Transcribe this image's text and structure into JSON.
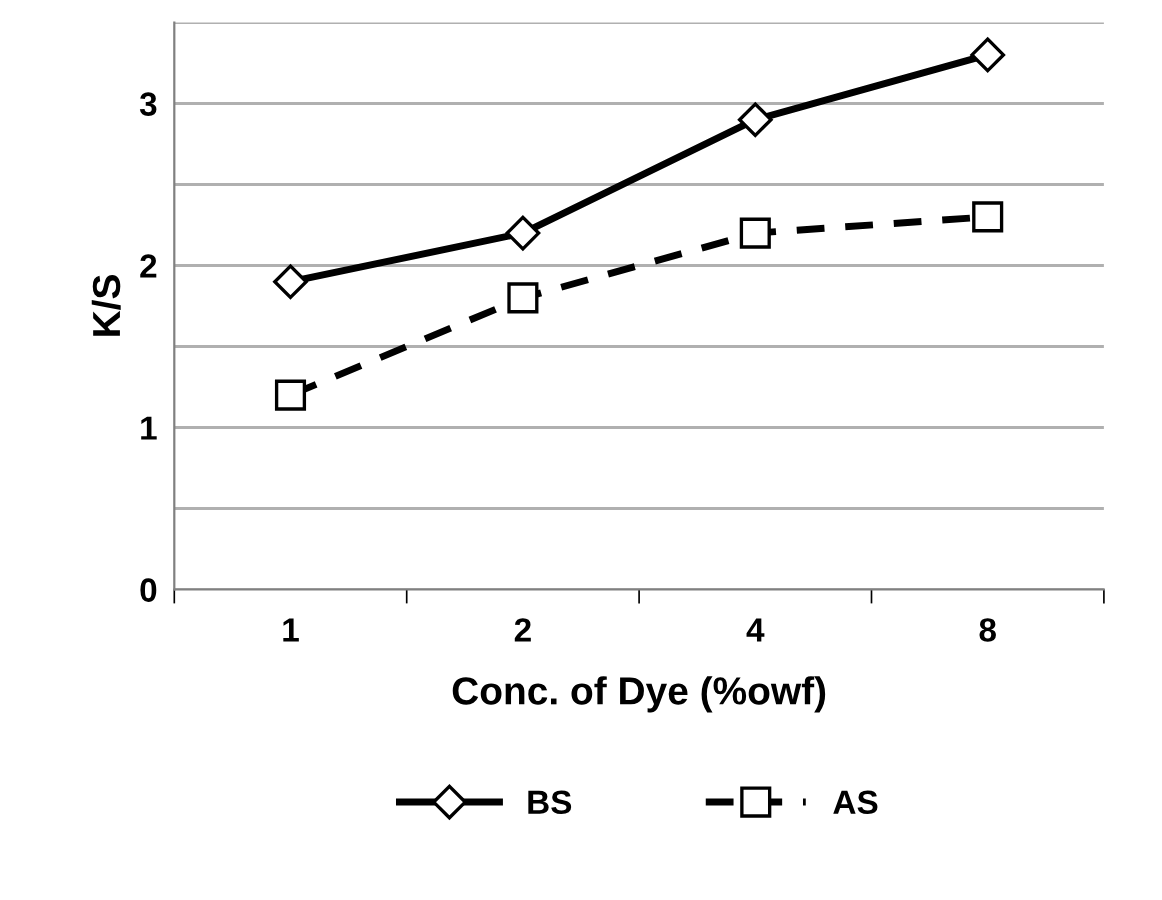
{
  "chart_data": {
    "type": "line",
    "xlabel": "Conc. of Dye (%owf)",
    "ylabel": "K/S",
    "categories": [
      "1",
      "2",
      "4",
      "8"
    ],
    "series": [
      {
        "name": "BS",
        "color": "#000000",
        "values": [
          1.9,
          2.2,
          2.9,
          3.3
        ],
        "marker": "diamond",
        "line_style": "solid"
      },
      {
        "name": "AS",
        "color": "#000000",
        "values": [
          1.2,
          1.8,
          2.2,
          2.3
        ],
        "marker": "square",
        "line_style": "dashed"
      }
    ],
    "ylim": [
      0,
      3.5
    ],
    "yticks": [
      0,
      {
        "value": 0.5,
        "label": null
      },
      1,
      {
        "value": 1.5,
        "label": null
      },
      2,
      {
        "value": 2.5,
        "label": null
      },
      3,
      {
        "value": 3.5,
        "label": null
      }
    ],
    "grid": "y",
    "legend": "bottom"
  }
}
